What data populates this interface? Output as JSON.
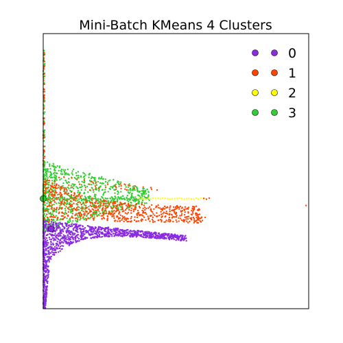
{
  "chart_data": {
    "type": "scatter",
    "title": "Mini-Batch KMeans 4 Clusters",
    "xlabel": "",
    "ylabel": "",
    "xlim": [
      0,
      100
    ],
    "ylim": [
      0,
      100
    ],
    "axis_ticks": false,
    "grid": false,
    "legend": "top-right",
    "series": [
      {
        "name": "0",
        "color": "#8a2be2",
        "centroid": [
          3,
          29
        ],
        "region": {
          "x_max": 55,
          "y_top": 33,
          "y_bottom": 0,
          "spread": "fan-down"
        }
      },
      {
        "name": "1",
        "color": "#ff4500",
        "centroid": null,
        "region": {
          "x_max": 62,
          "y_top": 48,
          "y_bottom": 30,
          "spread": "fan-up"
        }
      },
      {
        "name": "2",
        "color": "#ffff00",
        "centroid": null,
        "region": {
          "x_max": 62,
          "y_band": [
            39.5,
            40.5
          ]
        }
      },
      {
        "name": "3",
        "color": "#32cd32",
        "centroid": [
          0,
          40
        ],
        "region": {
          "x_max": 40,
          "y_top": 52,
          "y_bottom": 30,
          "spread": "cone"
        }
      }
    ],
    "outliers": [
      {
        "series": "1",
        "x": 99,
        "y": 37.5
      }
    ]
  }
}
